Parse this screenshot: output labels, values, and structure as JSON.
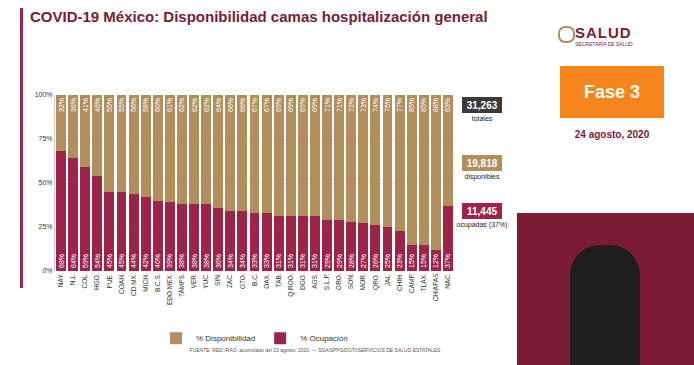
{
  "header": {
    "logo": "SALUD",
    "logo_subtitle": "SECRETARÍA DE SALUD",
    "phase": "Fase 3",
    "date": "24 agosto, 2020"
  },
  "summary": [
    {
      "value": "31,263",
      "label": "totales",
      "color": "#3b3b3b"
    },
    {
      "value": "19,818",
      "label": "disponibles",
      "color": "#b38e5d"
    },
    {
      "value": "11,445",
      "label": "ocupadas (37%)",
      "color": "#9d2449"
    }
  ],
  "source": "FUENTE: RED IRAG, acumulado del 23 agosto, 2020. — SSA/SPPS/DGTI/SERVICIOS DE SALUD ESTATALES",
  "chart_data": {
    "type": "bar",
    "title": "COVID-19 México: Disponibilidad camas hospitalización general",
    "stacked": true,
    "data_labels": true,
    "grid": true,
    "legend": "bottom",
    "categories": [
      "NAY.",
      "N.L.",
      "COL.",
      "HGO.",
      "PUE.",
      "COAH.",
      "CD.MX.",
      "MICH.",
      "B.C.S.",
      "EDO.MEX.",
      "TAMPS.",
      "VER.",
      "YUC.",
      "SIN.",
      "ZAC.",
      "GTO.",
      "B.C.",
      "OAX.",
      "TAB.",
      "Q.ROO.",
      "DGO.",
      "AGS.",
      "S.L.P.",
      "GRO.",
      "SON.",
      "MOR.",
      "QRO.",
      "JAL.",
      "CHIH.",
      "CAMP.",
      "TLAX.",
      "CHIAPAS",
      "NAC."
    ],
    "series": [
      {
        "name": "% Ocupación",
        "color": "#9d2449",
        "values": [
          68,
          64,
          59,
          54,
          45,
          45,
          44,
          42,
          40,
          39,
          38,
          38,
          38,
          36,
          34,
          34,
          33,
          33,
          31,
          31,
          31,
          31,
          29,
          29,
          28,
          27,
          26,
          25,
          23,
          15,
          15,
          12,
          37
        ],
        "value_labels": [
          "68%",
          "64%",
          "59%",
          "54%",
          "45%",
          "45%",
          "44%",
          "42%",
          "40%",
          "39%",
          "38%",
          "38%",
          "38%",
          "36%",
          "34%",
          "34%",
          "33%",
          "33%",
          "31%",
          "31%",
          "31%",
          "31%",
          "29%",
          "29%",
          "28%",
          "27%",
          "26%",
          "25%",
          "23%",
          "15%",
          "15%",
          "12%",
          "37%"
        ]
      },
      {
        "name": "% Disponibilidad",
        "color": "#b38e5d",
        "values": [
          32,
          36,
          41,
          46,
          55,
          55,
          56,
          58,
          60,
          61,
          62,
          62,
          62,
          64,
          66,
          66,
          67,
          67,
          69,
          69,
          69,
          69,
          71,
          71,
          72,
          73,
          74,
          75,
          77,
          85,
          85,
          88,
          63
        ],
        "value_labels": [
          "32%",
          "36%",
          "41%",
          "46%",
          "55%",
          "55%",
          "56%",
          "58%",
          "60%",
          "61%",
          "62%",
          "62%",
          "62%",
          "64%",
          "66%",
          "66%",
          "67%",
          "67%",
          "69%",
          "69%",
          "69%",
          "69%",
          "71%",
          "71%",
          "72%",
          "73%",
          "74%",
          "75%",
          "77%",
          "85%",
          "85%",
          "88%",
          "63%"
        ]
      }
    ],
    "ylim": [
      0,
      100
    ],
    "yticks": [
      {
        "value": 0,
        "label": "0%"
      },
      {
        "value": 25,
        "label": "25%"
      },
      {
        "value": 50,
        "label": "50%"
      },
      {
        "value": 75,
        "label": "75%"
      },
      {
        "value": 100,
        "label": "100%"
      }
    ]
  }
}
